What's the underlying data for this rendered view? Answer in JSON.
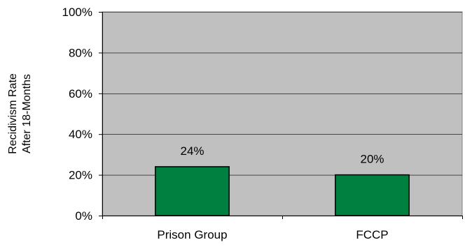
{
  "chart_data": {
    "type": "bar",
    "categories": [
      "Prison Group",
      "FCCP"
    ],
    "series": [
      {
        "values": [
          24,
          20
        ],
        "data_labels": [
          "24%",
          "20%"
        ]
      }
    ],
    "title": "",
    "xlabel": "",
    "ylabel_lines": [
      "Recidivism Rate",
      "After 18-Months"
    ],
    "ylim": [
      0,
      100
    ],
    "y_ticks": [
      0,
      20,
      40,
      60,
      80,
      100
    ],
    "y_tick_labels": [
      "0%",
      "20%",
      "40%",
      "60%",
      "80%",
      "100%"
    ],
    "grid": true,
    "legend": "none",
    "colors": {
      "plot_background": "#c0c0c0",
      "bar_fill": "#008040",
      "bar_stroke": "#000000",
      "gridline": "#000000"
    }
  }
}
